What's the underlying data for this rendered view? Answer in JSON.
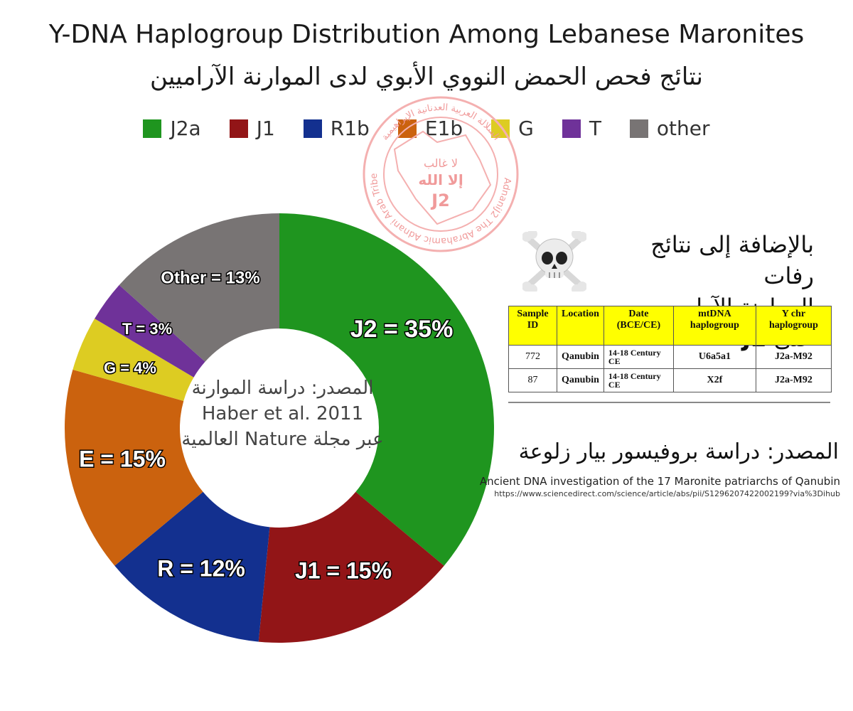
{
  "chart_data": {
    "type": "pie",
    "title": "Y-DNA Haplogroup Distribution Among Lebanese Maronites",
    "subtitle": "نتائج فحص الحمض النووي الأبوي لدى الموارنة الآراميين",
    "legend_position": "top",
    "legend": [
      {
        "label": "J2a",
        "color": "#1f951f"
      },
      {
        "label": "J1",
        "color": "#921517"
      },
      {
        "label": "R1b",
        "color": "#13308f"
      },
      {
        "label": "E1b",
        "color": "#cb620e"
      },
      {
        "label": "G",
        "color": "#ddcc22"
      },
      {
        "label": "T",
        "color": "#6f3299"
      },
      {
        "label": "other",
        "color": "#787474"
      }
    ],
    "slices": [
      {
        "label": "J2 = 35%",
        "value": 35,
        "color": "#1f951f"
      },
      {
        "label": "J1 = 15%",
        "value": 15,
        "color": "#921517"
      },
      {
        "label": "R = 12%",
        "value": 12,
        "color": "#13308f"
      },
      {
        "label": "E = 15%",
        "value": 15,
        "color": "#cb620e"
      },
      {
        "label": "G = 4%",
        "value": 4,
        "color": "#ddcc22"
      },
      {
        "label": "T = 3%",
        "value": 3,
        "color": "#6f3299"
      },
      {
        "label": "Other = 13%",
        "value": 13,
        "color": "#787474"
      }
    ],
    "center_text": [
      "المصدر: دراسة الموارنة",
      "Haber et al. 2011",
      "عبر مجلة Nature العالمية"
    ]
  },
  "side_panel": {
    "heading_line1": "بالإضافة إلى نتائج رفات",
    "heading_line2_prefix": "الموارنة الآراميين على",
    "heading_line2_bold": "J2",
    "icon": "skull-crossbones-icon",
    "table": {
      "headers": [
        "Sample ID",
        "Location",
        "Date (BCE/CE)",
        "mtDNA haplogroup",
        "Y chr haplogroup"
      ],
      "rows": [
        [
          "772",
          "Qanubin",
          "14-18 Century CE",
          "U6a5a1",
          "J2a-M92"
        ],
        [
          "87",
          "Qanubin",
          "14-18 Century CE",
          "X2f",
          "J2a-M92"
        ]
      ]
    },
    "source": "المصدر: دراسة بروفيسور بيار زلوعة",
    "paper_title": "Ancient DNA investigation of the 17 Maronite patriarchs of Qanubin",
    "paper_url": "https://www.sciencedirect.com/science/article/abs/pii/S1296207422002199?via%3Dihub"
  },
  "watermark": {
    "text_top": "السلالة العربية العدنانية الإبراهيمية",
    "text_bottom": "@AdnaniJ2 The Abrahamic Adnani Arab Tribes",
    "inner": [
      "لا غالب",
      "إلا الله",
      "J2"
    ],
    "color": "#f09a9a"
  }
}
